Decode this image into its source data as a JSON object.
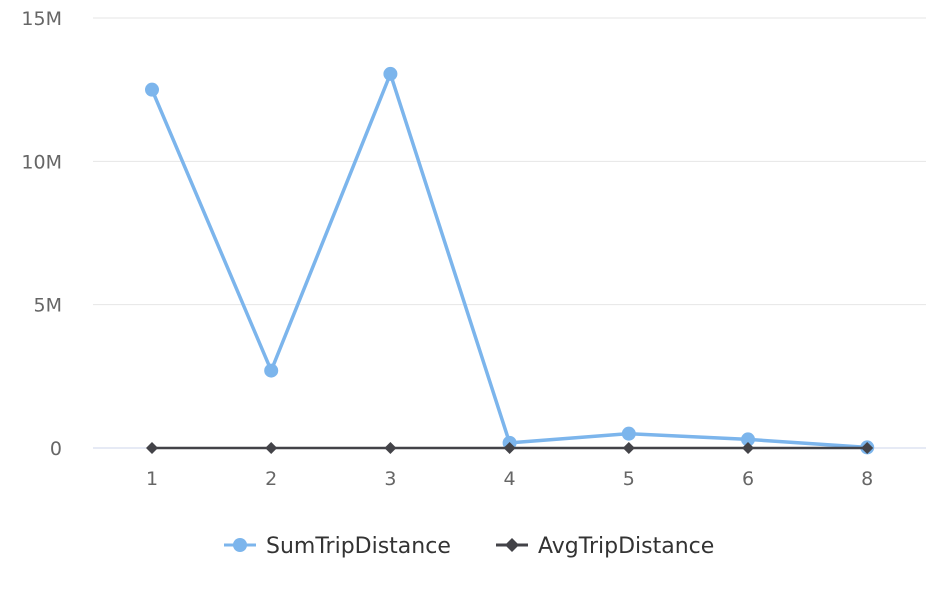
{
  "chart_data": {
    "type": "line",
    "categories": [
      "1",
      "2",
      "3",
      "4",
      "5",
      "6",
      "8"
    ],
    "y_ticks": [
      {
        "value": 0,
        "label": "0"
      },
      {
        "value": 5000000,
        "label": "5M"
      },
      {
        "value": 10000000,
        "label": "10M"
      },
      {
        "value": 15000000,
        "label": "15M"
      }
    ],
    "ylim": [
      0,
      15000000
    ],
    "grid": true,
    "legend_position": "bottom-center",
    "series": [
      {
        "name": "SumTripDistance",
        "color": "#7cb5ec",
        "marker": "circle",
        "values": [
          12500000,
          2700000,
          13050000,
          180000,
          500000,
          300000,
          20000
        ]
      },
      {
        "name": "AvgTripDistance",
        "color": "#434348",
        "marker": "diamond",
        "values": [
          3,
          3,
          3,
          3,
          3,
          3,
          3
        ]
      }
    ]
  }
}
